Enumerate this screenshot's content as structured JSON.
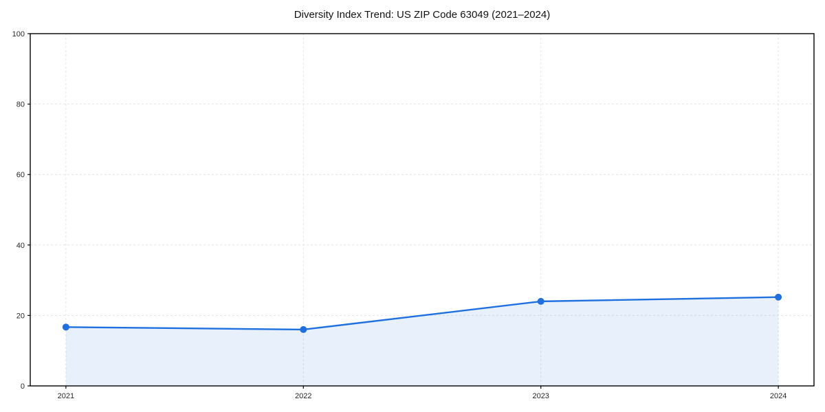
{
  "chart_data": {
    "type": "area",
    "title": "Diversity Index Trend: US ZIP Code 63049 (2021–2024)",
    "categories": [
      "2021",
      "2022",
      "2023",
      "2024"
    ],
    "series": [
      {
        "name": "Diversity Index",
        "values": [
          16.7,
          16.0,
          24.0,
          25.2
        ]
      }
    ],
    "xlabel": "",
    "ylabel": "",
    "ylim": [
      0,
      100
    ],
    "yticks": [
      0,
      20,
      40,
      60,
      80,
      100
    ],
    "grid": "dashed",
    "legend": "none",
    "colors": {
      "line": "#1e6fe0",
      "marker": "#1e6fe0",
      "fill": "rgba(30,111,224,0.10)",
      "grid": "#e4e4e4",
      "spine": "#000000",
      "tick_label": "#262626",
      "title": "#111111",
      "background": "#ffffff"
    }
  }
}
